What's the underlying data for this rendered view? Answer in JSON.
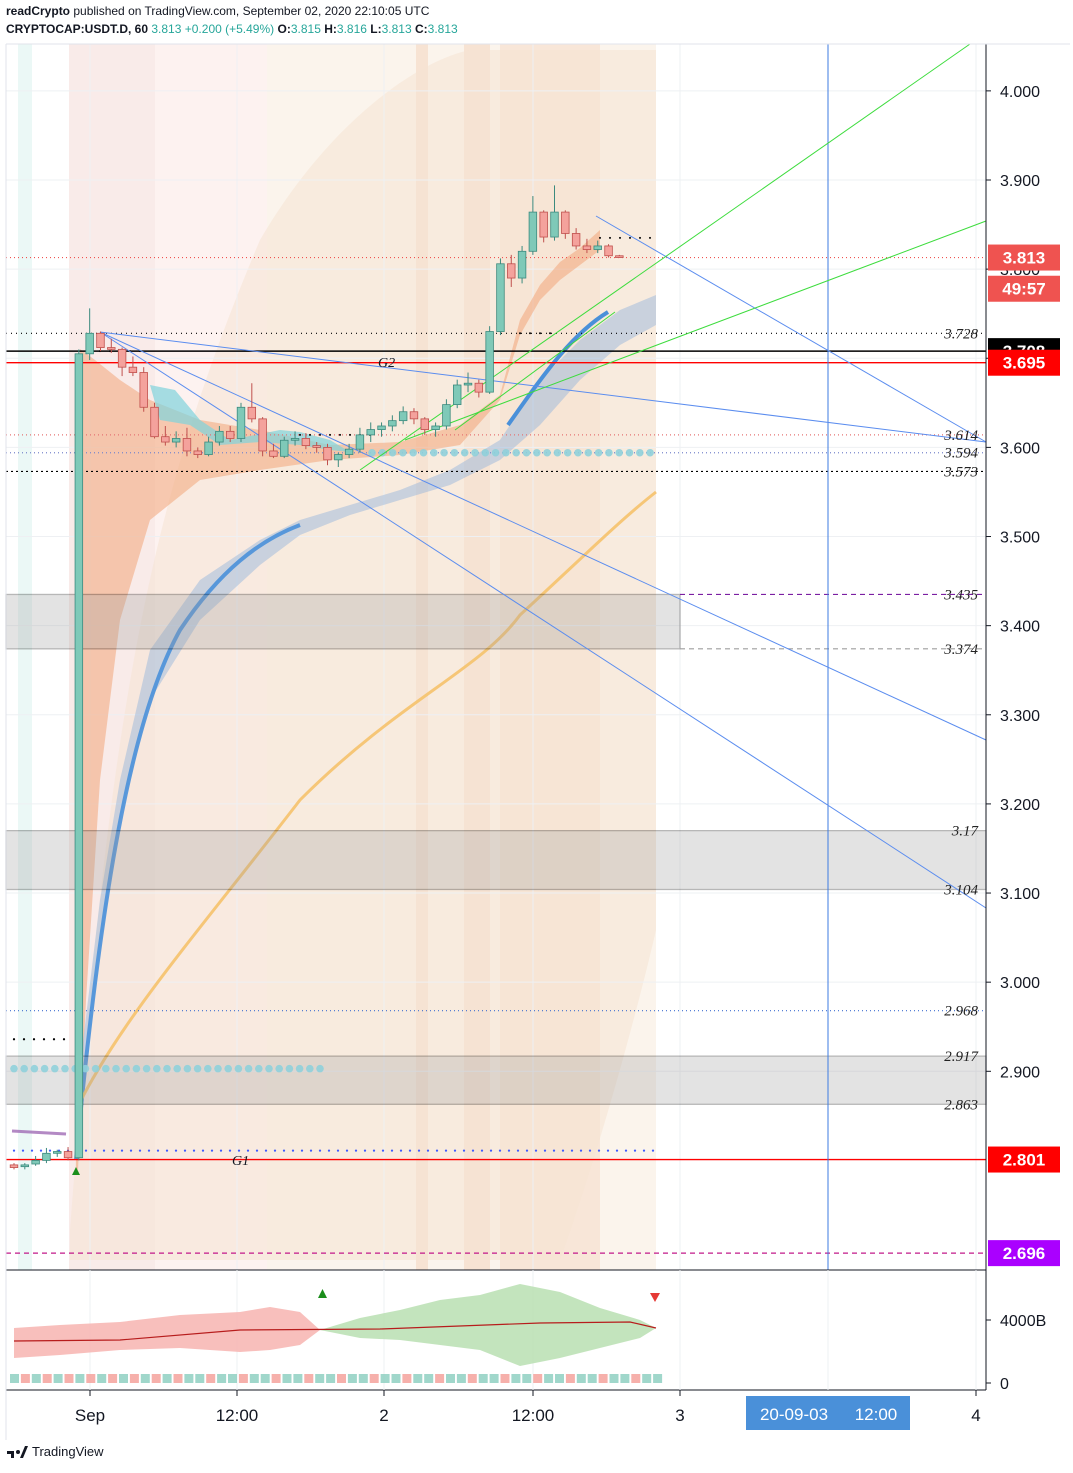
{
  "header": {
    "publisher": "readCrypto",
    "published_text": "published on TradingView.com, September 02, 2020 22:10:05 UTC",
    "symbol": "CRYPTOCAP:USDT.D, 60",
    "last": "3.813",
    "change": "+0.200 (+5.49%)",
    "o_label": "O:",
    "o": "3.815",
    "h_label": "H:",
    "h": "3.816",
    "l_label": "L:",
    "l": "3.813",
    "c_label": "C:",
    "c": "3.813"
  },
  "colors": {
    "up": "#26a69a",
    "down": "#ef5350",
    "ema_blue": "#4a90d9",
    "ema_orange": "#f5c26b",
    "trend_blue": "#5b8def",
    "trend_green": "#3ddc3d"
  },
  "price_axis": {
    "ticks": [
      "4.000",
      "3.900",
      "3.800",
      "3.700",
      "3.600",
      "3.500",
      "3.400",
      "3.300",
      "3.200",
      "3.100",
      "3.000",
      "2.900"
    ],
    "tick_values": [
      4.0,
      3.9,
      3.8,
      3.7,
      3.6,
      3.5,
      3.4,
      3.3,
      3.2,
      3.1,
      3.0,
      2.9
    ],
    "badges": [
      {
        "text": "3.813",
        "value": 3.813,
        "bg": "#ef5350",
        "fg": "#ffffff"
      },
      {
        "text": "49:57",
        "value": 3.778,
        "bg": "#ef5350",
        "fg": "#ffffff"
      },
      {
        "text": "3.708",
        "value": 3.708,
        "bg": "#000000",
        "fg": "#ffffff"
      },
      {
        "text": "3.695",
        "value": 3.695,
        "bg": "#ff0000",
        "fg": "#ffffff"
      },
      {
        "text": "2.801",
        "value": 2.801,
        "bg": "#ff0000",
        "fg": "#ffffff"
      },
      {
        "text": "2.696",
        "value": 2.696,
        "bg": "#aa00ff",
        "fg": "#ffffff"
      }
    ]
  },
  "level_labels": [
    {
      "text": "3.728",
      "value": 3.728
    },
    {
      "text": "3.614",
      "value": 3.614
    },
    {
      "text": "3.594",
      "value": 3.594
    },
    {
      "text": "3.573",
      "value": 3.573
    },
    {
      "text": "3.435",
      "value": 3.435
    },
    {
      "text": "3.374",
      "value": 3.374
    },
    {
      "text": "3.17",
      "value": 3.17
    },
    {
      "text": "3.104",
      "value": 3.104
    },
    {
      "text": "2.968",
      "value": 2.968
    },
    {
      "text": "2.917",
      "value": 2.917
    },
    {
      "text": "2.863",
      "value": 2.863
    }
  ],
  "annotations": {
    "g1": "G1",
    "g2": "G2"
  },
  "time_axis": {
    "labels": [
      "Sep",
      "12:00",
      "2",
      "12:00",
      "3",
      "4"
    ],
    "crosshair_date": "20-09-03",
    "crosshair_time": "12:00"
  },
  "volume_axis": {
    "labels": [
      "4000B",
      "0"
    ]
  },
  "footer": {
    "brand": "TradingView"
  },
  "chart_data": {
    "type": "candlestick",
    "title": "",
    "symbol": "CRYPTOCAP:USDT.D",
    "interval": "60",
    "ylim": [
      2.66,
      4.05
    ],
    "grid": true,
    "candles": [
      [
        2.795,
        2.797,
        2.79,
        2.792
      ],
      [
        2.793,
        2.797,
        2.79,
        2.795
      ],
      [
        2.796,
        2.805,
        2.794,
        2.8
      ],
      [
        2.8,
        2.814,
        2.797,
        2.808
      ],
      [
        2.808,
        2.812,
        2.804,
        2.81
      ],
      [
        2.81,
        2.815,
        2.8,
        2.803
      ],
      [
        2.803,
        3.71,
        2.8,
        3.705
      ],
      [
        3.705,
        3.756,
        3.698,
        3.728
      ],
      [
        3.728,
        3.73,
        3.708,
        3.712
      ],
      [
        3.712,
        3.722,
        3.706,
        3.71
      ],
      [
        3.71,
        3.712,
        3.68,
        3.69
      ],
      [
        3.69,
        3.702,
        3.68,
        3.684
      ],
      [
        3.684,
        3.69,
        3.64,
        3.645
      ],
      [
        3.645,
        3.65,
        3.61,
        3.612
      ],
      [
        3.612,
        3.624,
        3.602,
        3.606
      ],
      [
        3.606,
        3.618,
        3.6,
        3.61
      ],
      [
        3.61,
        3.622,
        3.59,
        3.596
      ],
      [
        3.596,
        3.6,
        3.588,
        3.592
      ],
      [
        3.592,
        3.612,
        3.59,
        3.606
      ],
      [
        3.606,
        3.624,
        3.602,
        3.618
      ],
      [
        3.618,
        3.624,
        3.606,
        3.61
      ],
      [
        3.61,
        3.65,
        3.606,
        3.645
      ],
      [
        3.645,
        3.672,
        3.628,
        3.632
      ],
      [
        3.632,
        3.634,
        3.59,
        3.596
      ],
      [
        3.596,
        3.604,
        3.588,
        3.59
      ],
      [
        3.59,
        3.612,
        3.588,
        3.608
      ],
      [
        3.608,
        3.618,
        3.602,
        3.61
      ],
      [
        3.61,
        3.616,
        3.598,
        3.602
      ],
      [
        3.602,
        3.606,
        3.594,
        3.6
      ],
      [
        3.6,
        3.604,
        3.58,
        3.586
      ],
      [
        3.586,
        3.594,
        3.578,
        3.592
      ],
      [
        3.592,
        3.604,
        3.588,
        3.598
      ],
      [
        3.598,
        3.622,
        3.594,
        3.614
      ],
      [
        3.614,
        3.628,
        3.606,
        3.62
      ],
      [
        3.62,
        3.628,
        3.612,
        3.624
      ],
      [
        3.624,
        3.636,
        3.618,
        3.63
      ],
      [
        3.63,
        3.646,
        3.626,
        3.64
      ],
      [
        3.64,
        3.644,
        3.626,
        3.632
      ],
      [
        3.632,
        3.634,
        3.614,
        3.62
      ],
      [
        3.62,
        3.628,
        3.612,
        3.624
      ],
      [
        3.624,
        3.654,
        3.62,
        3.648
      ],
      [
        3.648,
        3.676,
        3.644,
        3.67
      ],
      [
        3.67,
        3.684,
        3.662,
        3.672
      ],
      [
        3.672,
        3.676,
        3.656,
        3.662
      ],
      [
        3.662,
        3.736,
        3.66,
        3.73
      ],
      [
        3.73,
        3.812,
        3.726,
        3.806
      ],
      [
        3.806,
        3.816,
        3.78,
        3.79
      ],
      [
        3.79,
        3.826,
        3.784,
        3.82
      ],
      [
        3.82,
        3.882,
        3.816,
        3.864
      ],
      [
        3.864,
        3.866,
        3.83,
        3.836
      ],
      [
        3.836,
        3.894,
        3.832,
        3.864
      ],
      [
        3.864,
        3.866,
        3.834,
        3.84
      ],
      [
        3.84,
        3.846,
        3.822,
        3.826
      ],
      [
        3.826,
        3.834,
        3.818,
        3.822
      ],
      [
        3.822,
        3.832,
        3.818,
        3.826
      ],
      [
        3.826,
        3.828,
        3.813,
        3.815
      ],
      [
        3.815,
        3.816,
        3.813,
        3.813
      ]
    ],
    "levels": [
      3.728,
      3.708,
      3.695,
      3.614,
      3.594,
      3.573,
      3.435,
      3.374,
      3.17,
      3.104,
      2.968,
      2.917,
      2.863,
      2.801,
      2.696
    ],
    "zones": [
      {
        "from": 3.374,
        "to": 3.435
      },
      {
        "from": 3.104,
        "to": 3.17
      },
      {
        "from": 2.863,
        "to": 2.917
      }
    ]
  }
}
